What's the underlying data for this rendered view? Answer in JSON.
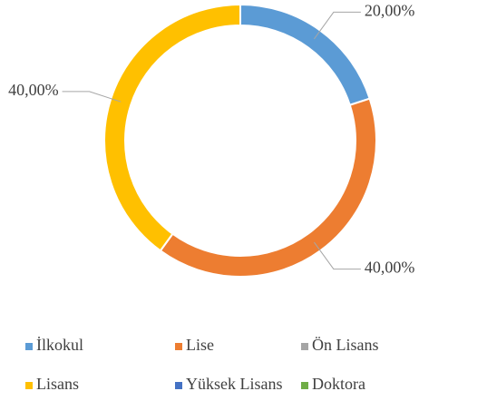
{
  "chart_data": {
    "type": "donut",
    "categories": [
      "İlkokul",
      "Lise",
      "Ön Lisans",
      "Lisans",
      "Yüksek Lisans",
      "Doktora"
    ],
    "values": [
      20,
      40,
      0,
      40,
      0,
      0
    ],
    "value_labels": [
      "20,00%",
      "40,00%",
      null,
      "40,00%",
      null,
      null
    ],
    "colors": [
      "#5b9bd5",
      "#ed7d31",
      "#a5a5a5",
      "#ffc000",
      "#4472c4",
      "#70ad47"
    ],
    "legend": "bottom"
  }
}
